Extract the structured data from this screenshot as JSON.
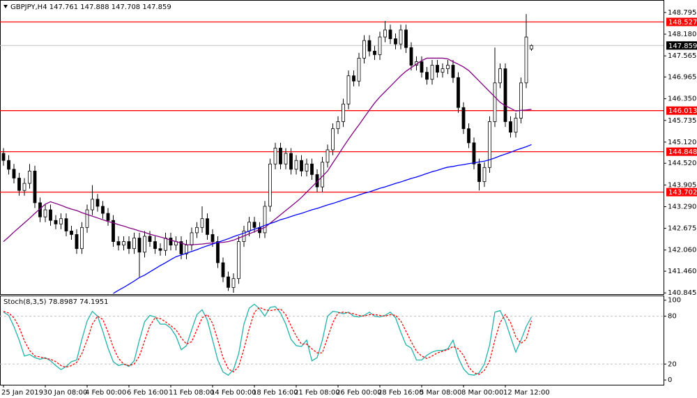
{
  "chart_data": [
    {
      "type": "candlestick",
      "title": "GBPJPY,H4  147.761 147.888 147.708 147.859",
      "categories": [
        "25 Jan 2019",
        null,
        null,
        null,
        null,
        null,
        null,
        null,
        "30 Jan 08:00",
        null,
        null,
        null,
        null,
        null,
        null,
        null,
        "4 Feb 00:00",
        null,
        null,
        null,
        null,
        null,
        null,
        null,
        "6 Feb 16:00",
        null,
        null,
        null,
        null,
        null,
        null,
        null,
        "11 Feb 08:00",
        null,
        null,
        null,
        null,
        null,
        null,
        null,
        "14 Feb 00:00",
        null,
        null,
        null,
        null,
        null,
        null,
        null,
        "18 Feb 16:00",
        null,
        null,
        null,
        null,
        null,
        null,
        null,
        "21 Feb 08:00",
        null,
        null,
        null,
        null,
        null,
        null,
        null,
        "26 Feb 00:00",
        null,
        null,
        null,
        null,
        null,
        null,
        null,
        "28 Feb 16:00",
        null,
        null,
        null,
        null,
        null,
        null,
        null,
        "5 Mar 08:00",
        null,
        null,
        null,
        null,
        null,
        null,
        null,
        "8 Mar 00:00",
        null,
        null,
        null,
        null,
        null,
        null,
        null,
        "12 Mar 12:00",
        null,
        null,
        null,
        null,
        null
      ],
      "open": [
        144.8,
        144.6,
        144.35,
        144.1,
        143.75,
        143.95,
        144.3,
        143.4,
        143.0,
        143.2,
        142.9,
        142.8,
        142.95,
        142.6,
        142.5,
        142.1,
        142.7,
        143.2,
        143.5,
        143.3,
        143.1,
        142.9,
        142.3,
        142.2,
        142.3,
        142.1,
        142.4,
        142.0,
        142.45,
        142.3,
        142.1,
        142.05,
        142.4,
        142.2,
        142.3,
        141.95,
        142.2,
        142.55,
        142.7,
        142.95,
        142.5,
        142.3,
        141.7,
        141.3,
        141.0,
        141.25,
        142.3,
        142.6,
        142.85,
        142.7,
        142.55,
        143.3,
        144.5,
        144.95,
        144.5,
        144.8,
        144.35,
        144.6,
        144.3,
        144.5,
        144.2,
        143.85,
        144.55,
        144.9,
        145.5,
        145.7,
        146.2,
        147.0,
        146.85,
        147.5,
        148.0,
        147.7,
        147.6,
        148.1,
        148.3,
        148.05,
        147.9,
        148.3,
        147.8,
        147.3,
        147.4,
        147.1,
        146.9,
        147.3,
        147.1,
        147.2,
        147.3,
        146.95,
        146.1,
        145.5,
        145.1,
        144.5,
        144.0,
        144.4,
        145.7,
        146.8,
        147.2,
        145.7,
        145.4,
        145.8,
        146.8,
        147.761
      ],
      "high": [
        144.95,
        144.75,
        144.5,
        144.25,
        144.1,
        144.5,
        144.45,
        143.55,
        143.35,
        143.35,
        143.05,
        143.1,
        143.1,
        142.75,
        142.65,
        142.85,
        143.35,
        143.9,
        143.65,
        143.45,
        143.25,
        143.05,
        142.45,
        142.45,
        142.45,
        142.55,
        142.55,
        142.6,
        142.6,
        142.45,
        142.25,
        142.55,
        142.55,
        142.45,
        142.45,
        142.35,
        142.7,
        142.85,
        143.3,
        143.1,
        142.65,
        142.45,
        141.85,
        141.45,
        141.4,
        142.45,
        142.75,
        143.0,
        143.0,
        142.85,
        143.45,
        144.65,
        145.1,
        145.1,
        144.95,
        144.95,
        144.75,
        144.75,
        144.65,
        144.65,
        144.35,
        144.7,
        145.05,
        145.65,
        145.85,
        146.35,
        147.15,
        147.15,
        147.65,
        148.15,
        148.15,
        147.85,
        148.25,
        148.55,
        148.45,
        148.2,
        148.45,
        148.45,
        147.95,
        147.55,
        147.55,
        147.25,
        147.45,
        147.45,
        147.35,
        147.45,
        147.45,
        147.1,
        146.25,
        145.65,
        145.25,
        144.65,
        144.55,
        145.85,
        147.8,
        147.35,
        147.35,
        145.85,
        145.95,
        146.95,
        148.75,
        147.888
      ],
      "low": [
        144.45,
        144.2,
        143.95,
        143.6,
        143.6,
        143.8,
        143.25,
        142.85,
        142.85,
        142.75,
        142.65,
        142.65,
        142.45,
        142.35,
        141.95,
        141.95,
        142.55,
        143.05,
        143.15,
        142.95,
        142.75,
        142.15,
        142.05,
        142.05,
        141.95,
        141.95,
        141.3,
        141.85,
        142.15,
        141.95,
        141.9,
        141.9,
        142.05,
        142.05,
        141.8,
        141.8,
        142.05,
        142.4,
        142.55,
        142.35,
        142.15,
        141.55,
        141.15,
        140.9,
        140.85,
        141.1,
        142.15,
        142.45,
        142.55,
        142.4,
        142.4,
        143.15,
        144.35,
        144.35,
        144.35,
        144.2,
        144.2,
        144.15,
        144.15,
        144.05,
        143.7,
        143.7,
        144.4,
        144.75,
        145.35,
        145.55,
        146.05,
        146.7,
        146.7,
        147.35,
        147.55,
        147.45,
        147.45,
        147.95,
        147.9,
        147.75,
        147.75,
        147.65,
        147.15,
        147.15,
        146.95,
        146.75,
        146.75,
        146.95,
        146.95,
        147.05,
        146.8,
        145.95,
        145.35,
        144.95,
        144.35,
        143.75,
        143.85,
        144.25,
        145.55,
        146.65,
        145.55,
        145.25,
        145.25,
        145.65,
        146.65,
        147.708
      ],
      "close": [
        144.6,
        144.35,
        144.1,
        143.75,
        143.95,
        144.3,
        143.4,
        143.0,
        143.2,
        142.9,
        142.8,
        142.95,
        142.6,
        142.5,
        142.1,
        142.7,
        143.2,
        143.5,
        143.3,
        143.1,
        142.9,
        142.3,
        142.2,
        142.3,
        142.1,
        142.4,
        142.0,
        142.45,
        142.3,
        142.1,
        142.05,
        142.4,
        142.2,
        142.3,
        141.95,
        142.2,
        142.55,
        142.7,
        142.95,
        142.5,
        142.3,
        141.7,
        141.3,
        141.0,
        141.25,
        142.3,
        142.6,
        142.85,
        142.7,
        142.55,
        143.3,
        144.5,
        144.95,
        144.5,
        144.8,
        144.35,
        144.6,
        144.3,
        144.5,
        144.2,
        143.85,
        144.55,
        144.9,
        145.5,
        145.7,
        146.2,
        147.0,
        146.85,
        147.5,
        148.0,
        147.7,
        147.6,
        148.1,
        148.3,
        148.05,
        147.9,
        148.3,
        147.8,
        147.3,
        147.4,
        147.1,
        146.9,
        147.3,
        147.1,
        147.2,
        147.3,
        146.95,
        146.1,
        145.5,
        145.1,
        144.5,
        144.0,
        144.4,
        145.7,
        146.8,
        147.2,
        145.7,
        145.4,
        145.8,
        146.8,
        148.1,
        147.859
      ],
      "up_color": "#ffffff",
      "down_color": "#000000",
      "outline_color": "#000000",
      "series": [
        {
          "color": "#800080",
          "values": [
            142.3,
            142.43,
            142.57,
            142.7,
            142.83,
            142.96,
            143.1,
            143.23,
            143.36,
            143.43,
            143.38,
            143.33,
            143.27,
            143.22,
            143.18,
            143.12,
            143.07,
            143.02,
            142.97,
            142.92,
            142.87,
            142.83,
            142.78,
            142.74,
            142.69,
            142.65,
            142.6,
            142.56,
            142.51,
            142.47,
            142.43,
            142.39,
            142.34,
            142.3,
            142.26,
            142.21,
            142.21,
            142.22,
            142.23,
            142.25,
            142.26,
            142.27,
            142.28,
            142.3,
            142.34,
            142.4,
            142.46,
            142.52,
            142.58,
            142.64,
            142.7,
            142.82,
            142.94,
            143.06,
            143.18,
            143.3,
            143.42,
            143.55,
            143.7,
            143.85,
            144.0,
            144.15,
            144.3,
            144.53,
            144.75,
            144.98,
            145.2,
            145.41,
            145.61,
            145.82,
            146.03,
            146.23,
            146.4,
            146.55,
            146.7,
            146.85,
            147.0,
            147.13,
            147.23,
            147.33,
            147.43,
            147.5,
            147.5,
            147.5,
            147.5,
            147.48,
            147.4,
            147.33,
            147.25,
            147.15,
            147.0,
            146.85,
            146.7,
            146.55,
            146.4,
            146.25,
            146.15,
            146.08,
            146.0,
            146.02,
            146.03,
            146.05
          ]
        },
        {
          "color": "#0000ff",
          "values": [
            null,
            null,
            null,
            null,
            null,
            null,
            null,
            null,
            null,
            null,
            null,
            null,
            null,
            null,
            null,
            null,
            null,
            null,
            null,
            null,
            null,
            140.83,
            140.92,
            141.0,
            141.09,
            141.18,
            141.28,
            141.35,
            141.44,
            141.53,
            141.62,
            141.7,
            141.79,
            141.87,
            141.92,
            141.97,
            142.02,
            142.07,
            142.13,
            142.18,
            142.23,
            142.28,
            142.33,
            142.38,
            142.44,
            142.49,
            142.54,
            142.6,
            142.65,
            142.7,
            142.76,
            142.81,
            142.86,
            142.92,
            142.96,
            143.01,
            143.06,
            143.1,
            143.15,
            143.2,
            143.24,
            143.29,
            143.34,
            143.38,
            143.43,
            143.48,
            143.53,
            143.57,
            143.62,
            143.67,
            143.71,
            143.76,
            143.81,
            143.85,
            143.9,
            143.95,
            143.99,
            144.04,
            144.09,
            144.13,
            144.18,
            144.23,
            144.28,
            144.32,
            144.37,
            144.41,
            144.43,
            144.46,
            144.48,
            144.51,
            144.53,
            144.56,
            144.58,
            144.62,
            144.67,
            144.73,
            144.78,
            144.83,
            144.89,
            144.94,
            144.99,
            145.05
          ]
        }
      ],
      "levels": [
        148.527,
        146.013,
        144.848,
        143.702
      ],
      "level_color": "#ff0000",
      "last_price_color": "#c0c0c0",
      "ylim": [
        140.79,
        149.05
      ],
      "yticks": [
        140.845,
        {
          "value": 141.46,
          "label": "141.460"
        },
        {
          "value": 142.06,
          "label": "142.060"
        },
        142.675,
        {
          "value": 143.29,
          "label": "143.290"
        },
        143.905,
        {
          "value": 144.52,
          "label": "144.520"
        },
        {
          "value": 145.12,
          "label": "145.120"
        },
        145.735,
        {
          "value": 146.35,
          "label": "146.350"
        },
        146.965,
        147.565,
        {
          "value": 148.18,
          "label": "148.180"
        },
        148.795
      ],
      "grid": false
    },
    {
      "type": "line",
      "title": "Stoch(8,3,5) 78.8987 74.1951",
      "series": [
        {
          "color": "#20b2aa",
          "style": "solid",
          "values": [
            85,
            81,
            67,
            50,
            30,
            32,
            28,
            26,
            28,
            24,
            18,
            13,
            17,
            23,
            25,
            51,
            74,
            86,
            80,
            61,
            40,
            23,
            18,
            20,
            17,
            24,
            50,
            73,
            81,
            79,
            70,
            70,
            65,
            55,
            38,
            43,
            63,
            82,
            88,
            75,
            50,
            25,
            10,
            6,
            13,
            33,
            70,
            90,
            95,
            89,
            80,
            91,
            92,
            84,
            70,
            51,
            43,
            42,
            50,
            24,
            28,
            50,
            80,
            86,
            85,
            83,
            85,
            80,
            79,
            81,
            85,
            80,
            79,
            81,
            85,
            78,
            60,
            44,
            40,
            25,
            25,
            31,
            35,
            37,
            37,
            39,
            50,
            28,
            14,
            7,
            6,
            9,
            20,
            44,
            85,
            87,
            74,
            54,
            35,
            50,
            67,
            78.8987
          ]
        },
        {
          "color": "#ff0000",
          "style": "dashed",
          "values": [
            86,
            84,
            78,
            66,
            49,
            37,
            30,
            29,
            27,
            26,
            23,
            18,
            16,
            18,
            22,
            33,
            50,
            70,
            80,
            76,
            60,
            41,
            27,
            20,
            18,
            20,
            30,
            49,
            68,
            78,
            77,
            73,
            68,
            63,
            53,
            45,
            48,
            63,
            78,
            82,
            71,
            50,
            28,
            14,
            10,
            17,
            39,
            64,
            85,
            91,
            88,
            87,
            88,
            89,
            82,
            68,
            55,
            45,
            45,
            39,
            34,
            34,
            53,
            72,
            84,
            85,
            84,
            83,
            81,
            80,
            82,
            82,
            81,
            80,
            82,
            81,
            74,
            61,
            48,
            36,
            30,
            27,
            30,
            34,
            36,
            38,
            42,
            39,
            31,
            16,
            9,
            7,
            12,
            24,
            50,
            72,
            82,
            72,
            54,
            46,
            51,
            74.1951
          ]
        }
      ],
      "levels": [
        20,
        80
      ],
      "level_color": "#c0c0c0",
      "ylim": [
        -6,
        105
      ],
      "yticks": [
        0,
        20,
        80,
        100
      ]
    }
  ]
}
